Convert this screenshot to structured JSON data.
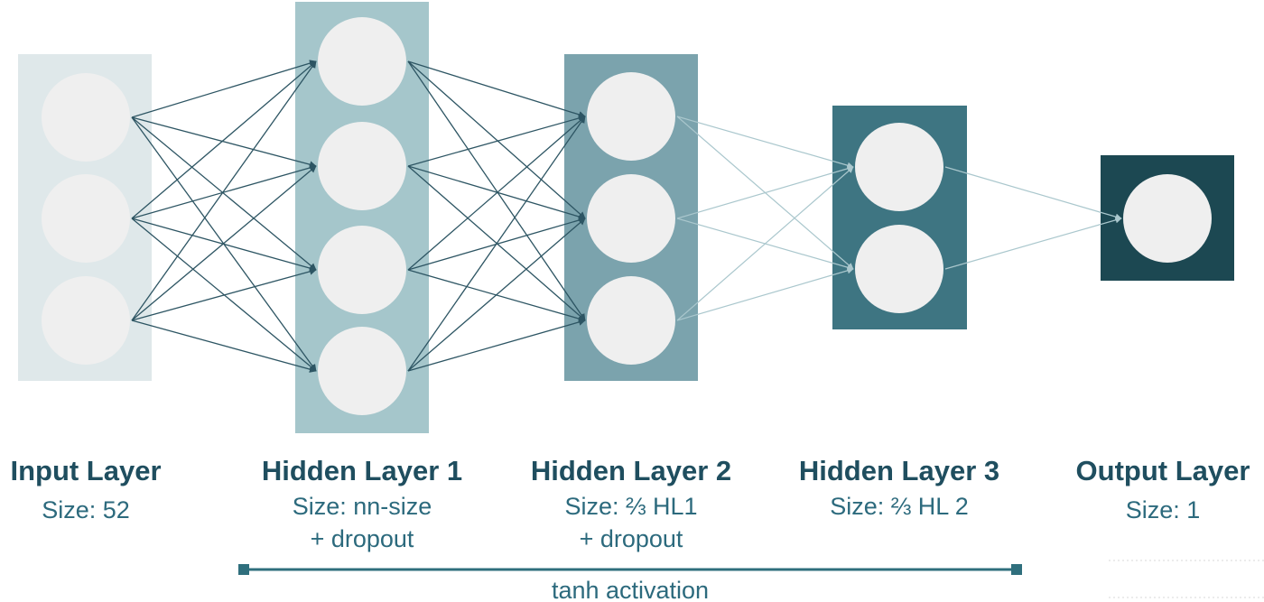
{
  "diagram": {
    "layers": [
      {
        "key": "input",
        "title": "Input Layer",
        "size_label": "Size: 52",
        "note": "",
        "nodes": 3,
        "fill": "#dfe8ea"
      },
      {
        "key": "hidden1",
        "title": "Hidden Layer 1",
        "size_label": "Size: nn-size",
        "note": "+  dropout",
        "nodes": 4,
        "fill": "#a5c6cb"
      },
      {
        "key": "hidden2",
        "title": "Hidden Layer 2",
        "size_label": "Size: ⅔ HL1",
        "note": "+  dropout",
        "nodes": 3,
        "fill": "#7ba3ad"
      },
      {
        "key": "hidden3",
        "title": "Hidden Layer 3",
        "size_label": "Size: ⅔ HL 2",
        "note": "",
        "nodes": 2,
        "fill": "#3e7582"
      },
      {
        "key": "output",
        "title": "Output Layer",
        "size_label": "Size: 1",
        "note": "",
        "nodes": 1,
        "fill": "#1c4852"
      }
    ],
    "connection_colors": [
      "#2d5563",
      "#2d5563",
      "#aac7cd",
      "#aac7cd"
    ],
    "activation": {
      "label": "tanh activation",
      "color": "#2f6f7d"
    },
    "node_color": "#efefef"
  }
}
